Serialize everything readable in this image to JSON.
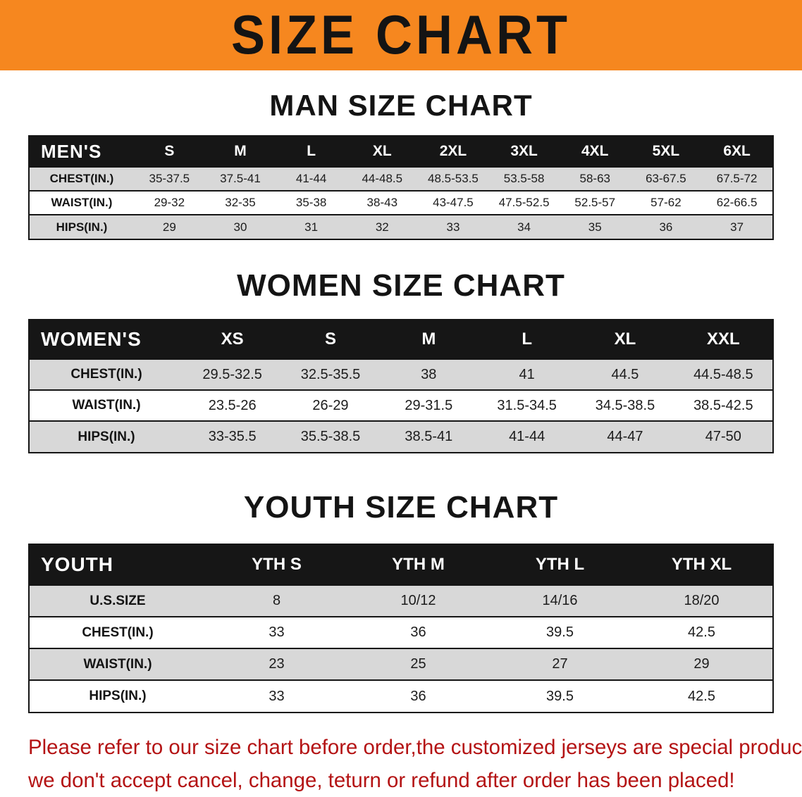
{
  "banner": {
    "title": "SIZE CHART"
  },
  "colors": {
    "banner_orange": "#F6871F",
    "header_black": "#161616",
    "row_shade_gray": "#D8D8D8",
    "disclaimer_red": "#B41314"
  },
  "sections": [
    {
      "heading": "MAN SIZE CHART",
      "table": {
        "label": "MEN'S",
        "columns": [
          "S",
          "M",
          "L",
          "XL",
          "2XL",
          "3XL",
          "4XL",
          "5XL",
          "6XL"
        ],
        "rows": [
          {
            "label": "CHEST(IN.)",
            "values": [
              "35-37.5",
              "37.5-41",
              "41-44",
              "44-48.5",
              "48.5-53.5",
              "53.5-58",
              "58-63",
              "63-67.5",
              "67.5-72"
            ]
          },
          {
            "label": "WAIST(IN.)",
            "values": [
              "29-32",
              "32-35",
              "35-38",
              "38-43",
              "43-47.5",
              "47.5-52.5",
              "52.5-57",
              "57-62",
              "62-66.5"
            ]
          },
          {
            "label": "HIPS(IN.)",
            "values": [
              "29",
              "30",
              "31",
              "32",
              "33",
              "34",
              "35",
              "36",
              "37"
            ]
          }
        ]
      }
    },
    {
      "heading": "WOMEN SIZE CHART",
      "table": {
        "label": "WOMEN'S",
        "columns": [
          "XS",
          "S",
          "M",
          "L",
          "XL",
          "XXL"
        ],
        "rows": [
          {
            "label": "CHEST(IN.)",
            "values": [
              "29.5-32.5",
              "32.5-35.5",
              "38",
              "41",
              "44.5",
              "44.5-48.5"
            ]
          },
          {
            "label": "WAIST(IN.)",
            "values": [
              "23.5-26",
              "26-29",
              "29-31.5",
              "31.5-34.5",
              "34.5-38.5",
              "38.5-42.5"
            ]
          },
          {
            "label": "HIPS(IN.)",
            "values": [
              "33-35.5",
              "35.5-38.5",
              "38.5-41",
              "41-44",
              "44-47",
              "47-50"
            ]
          }
        ]
      }
    },
    {
      "heading": "YOUTH SIZE CHART",
      "table": {
        "label": "YOUTH",
        "columns": [
          "YTH S",
          "YTH M",
          "YTH L",
          "YTH XL"
        ],
        "rows": [
          {
            "label": "U.S.SIZE",
            "values": [
              "8",
              "10/12",
              "14/16",
              "18/20"
            ]
          },
          {
            "label": "CHEST(IN.)",
            "values": [
              "33",
              "36",
              "39.5",
              "42.5"
            ]
          },
          {
            "label": "WAIST(IN.)",
            "values": [
              "23",
              "25",
              "27",
              "29"
            ]
          },
          {
            "label": "HIPS(IN.)",
            "values": [
              "33",
              "36",
              "39.5",
              "42.5"
            ]
          }
        ]
      }
    }
  ],
  "disclaimer": {
    "lines": [
      "Please refer to our size chart before order,the customized jerseys are special products,",
      "we don't accept cancel, change, teturn or refund after order has been placed!"
    ]
  }
}
